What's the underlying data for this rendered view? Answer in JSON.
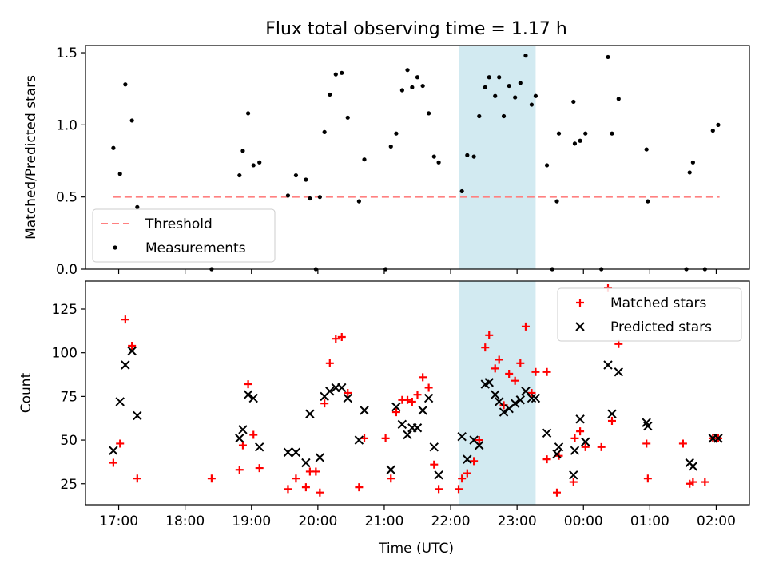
{
  "chart_data": {
    "type": "scatter",
    "title": "Flux total observing time = 1.17 h",
    "xlabel": "Time (UTC)",
    "x_tick_labels": [
      "17:00",
      "18:00",
      "19:00",
      "20:00",
      "21:00",
      "22:00",
      "23:00",
      "00:00",
      "01:00",
      "02:00"
    ],
    "x_ticks_hours": [
      17,
      18,
      19,
      20,
      21,
      22,
      23,
      24,
      25,
      26
    ],
    "x_range_hours": [
      16.5,
      26.5
    ],
    "highlight_band_hours": [
      22.12,
      23.28
    ],
    "highlight_color": "#add8e6",
    "panels": [
      {
        "ylabel": "Matched/Predicted stars",
        "ylim": [
          0,
          1.55
        ],
        "y_ticks": [
          0,
          0.5,
          1.0,
          1.5
        ],
        "y_tick_labels": [
          "0.0",
          "0.5",
          "1.0",
          "1.5"
        ],
        "threshold": {
          "name": "Threshold",
          "value": 0.5,
          "x_range": [
            16.92,
            26.05
          ],
          "color": "#ff8080"
        },
        "series": [
          {
            "name": "Measurements",
            "marker": "dot",
            "color": "#000000",
            "points": [
              [
                16.92,
                0.84
              ],
              [
                17.02,
                0.66
              ],
              [
                17.1,
                1.28
              ],
              [
                17.2,
                1.03
              ],
              [
                17.28,
                0.43
              ],
              [
                18.4,
                0.0
              ],
              [
                18.82,
                0.65
              ],
              [
                18.87,
                0.82
              ],
              [
                18.95,
                1.08
              ],
              [
                19.03,
                0.72
              ],
              [
                19.12,
                0.74
              ],
              [
                19.55,
                0.51
              ],
              [
                19.67,
                0.65
              ],
              [
                19.82,
                0.62
              ],
              [
                19.88,
                0.49
              ],
              [
                19.97,
                0.0
              ],
              [
                20.03,
                0.5
              ],
              [
                20.1,
                0.95
              ],
              [
                20.18,
                1.21
              ],
              [
                20.27,
                1.35
              ],
              [
                20.36,
                1.36
              ],
              [
                20.45,
                1.05
              ],
              [
                20.62,
                0.47
              ],
              [
                20.7,
                0.76
              ],
              [
                21.02,
                0.0
              ],
              [
                21.1,
                0.85
              ],
              [
                21.18,
                0.94
              ],
              [
                21.27,
                1.24
              ],
              [
                21.35,
                1.38
              ],
              [
                21.42,
                1.26
              ],
              [
                21.5,
                1.33
              ],
              [
                21.58,
                1.27
              ],
              [
                21.67,
                1.08
              ],
              [
                21.75,
                0.78
              ],
              [
                21.82,
                0.74
              ],
              [
                22.17,
                0.54
              ],
              [
                22.25,
                0.79
              ],
              [
                22.35,
                0.78
              ],
              [
                22.43,
                1.06
              ],
              [
                22.52,
                1.26
              ],
              [
                22.58,
                1.33
              ],
              [
                22.67,
                1.2
              ],
              [
                22.73,
                1.33
              ],
              [
                22.8,
                1.06
              ],
              [
                22.88,
                1.27
              ],
              [
                22.97,
                1.19
              ],
              [
                23.05,
                1.29
              ],
              [
                23.13,
                1.48
              ],
              [
                23.22,
                1.14
              ],
              [
                23.28,
                1.2
              ],
              [
                23.45,
                0.72
              ],
              [
                23.53,
                0.0
              ],
              [
                23.6,
                0.47
              ],
              [
                23.63,
                0.94
              ],
              [
                23.85,
                1.16
              ],
              [
                23.87,
                0.87
              ],
              [
                23.95,
                0.89
              ],
              [
                24.03,
                0.94
              ],
              [
                24.27,
                0.0
              ],
              [
                24.37,
                1.47
              ],
              [
                24.43,
                0.94
              ],
              [
                24.53,
                1.18
              ],
              [
                24.95,
                0.83
              ],
              [
                24.97,
                0.47
              ],
              [
                25.55,
                0.0
              ],
              [
                25.6,
                0.67
              ],
              [
                25.65,
                0.74
              ],
              [
                25.83,
                0.0
              ],
              [
                25.95,
                0.96
              ],
              [
                26.03,
                1.0
              ]
            ]
          }
        ],
        "legend": {
          "position": "lower-left",
          "entries": [
            "Threshold",
            "Measurements"
          ]
        }
      },
      {
        "ylabel": "Count",
        "ylim": [
          13,
          141
        ],
        "y_ticks": [
          25,
          50,
          75,
          100,
          125
        ],
        "y_tick_labels": [
          "25",
          "50",
          "75",
          "100",
          "125"
        ],
        "series": [
          {
            "name": "Matched stars",
            "marker": "plus",
            "color": "#ff0000",
            "points": [
              [
                16.92,
                37
              ],
              [
                17.02,
                48
              ],
              [
                17.1,
                119
              ],
              [
                17.2,
                104
              ],
              [
                17.28,
                28
              ],
              [
                18.4,
                28
              ],
              [
                18.82,
                33
              ],
              [
                18.87,
                47
              ],
              [
                18.95,
                82
              ],
              [
                19.03,
                53
              ],
              [
                19.12,
                34
              ],
              [
                19.55,
                22
              ],
              [
                19.67,
                28
              ],
              [
                19.82,
                23
              ],
              [
                19.88,
                32
              ],
              [
                19.97,
                32
              ],
              [
                20.03,
                20
              ],
              [
                20.1,
                71
              ],
              [
                20.18,
                94
              ],
              [
                20.27,
                108
              ],
              [
                20.36,
                109
              ],
              [
                20.45,
                77
              ],
              [
                20.62,
                23
              ],
              [
                20.7,
                51
              ],
              [
                21.02,
                51
              ],
              [
                21.1,
                28
              ],
              [
                21.18,
                66
              ],
              [
                21.27,
                73
              ],
              [
                21.35,
                73
              ],
              [
                21.42,
                72
              ],
              [
                21.5,
                76
              ],
              [
                21.58,
                86
              ],
              [
                21.67,
                80
              ],
              [
                21.75,
                36
              ],
              [
                21.82,
                22
              ],
              [
                22.12,
                22
              ],
              [
                22.17,
                28
              ],
              [
                22.25,
                31
              ],
              [
                22.35,
                38
              ],
              [
                22.43,
                50
              ],
              [
                22.52,
                103
              ],
              [
                22.58,
                110
              ],
              [
                22.67,
                91
              ],
              [
                22.73,
                96
              ],
              [
                22.8,
                70
              ],
              [
                22.88,
                88
              ],
              [
                22.97,
                84
              ],
              [
                23.05,
                94
              ],
              [
                23.13,
                115
              ],
              [
                23.22,
                77
              ],
              [
                23.28,
                89
              ],
              [
                23.45,
                89
              ],
              [
                23.45,
                39
              ],
              [
                23.6,
                20
              ],
              [
                23.63,
                41
              ],
              [
                23.85,
                26
              ],
              [
                23.87,
                51
              ],
              [
                23.95,
                55
              ],
              [
                24.03,
                46
              ],
              [
                24.27,
                46
              ],
              [
                24.37,
                137
              ],
              [
                24.43,
                61
              ],
              [
                24.53,
                105
              ],
              [
                24.95,
                48
              ],
              [
                24.97,
                28
              ],
              [
                25.5,
                48
              ],
              [
                25.6,
                25
              ],
              [
                25.65,
                26
              ],
              [
                25.83,
                26
              ],
              [
                25.95,
                51
              ],
              [
                26.03,
                51
              ]
            ]
          },
          {
            "name": "Predicted stars",
            "marker": "x",
            "color": "#000000",
            "points": [
              [
                16.92,
                44
              ],
              [
                17.02,
                72
              ],
              [
                17.1,
                93
              ],
              [
                17.2,
                101
              ],
              [
                17.28,
                64
              ],
              [
                18.82,
                51
              ],
              [
                18.87,
                56
              ],
              [
                18.95,
                76
              ],
              [
                19.03,
                74
              ],
              [
                19.12,
                46
              ],
              [
                19.55,
                43
              ],
              [
                19.67,
                43
              ],
              [
                19.82,
                37
              ],
              [
                19.88,
                65
              ],
              [
                20.03,
                40
              ],
              [
                20.1,
                75
              ],
              [
                20.18,
                78
              ],
              [
                20.27,
                80
              ],
              [
                20.36,
                80
              ],
              [
                20.45,
                74
              ],
              [
                20.62,
                50
              ],
              [
                20.7,
                67
              ],
              [
                21.1,
                33
              ],
              [
                21.18,
                69
              ],
              [
                21.27,
                59
              ],
              [
                21.35,
                53
              ],
              [
                21.42,
                57
              ],
              [
                21.5,
                57
              ],
              [
                21.58,
                67
              ],
              [
                21.67,
                74
              ],
              [
                21.75,
                46
              ],
              [
                21.82,
                30
              ],
              [
                22.17,
                52
              ],
              [
                22.25,
                39
              ],
              [
                22.35,
                50
              ],
              [
                22.43,
                47
              ],
              [
                22.52,
                82
              ],
              [
                22.58,
                83
              ],
              [
                22.67,
                76
              ],
              [
                22.73,
                72
              ],
              [
                22.8,
                66
              ],
              [
                22.88,
                68
              ],
              [
                22.97,
                71
              ],
              [
                23.05,
                73
              ],
              [
                23.13,
                78
              ],
              [
                23.22,
                74
              ],
              [
                23.28,
                74
              ],
              [
                23.45,
                54
              ],
              [
                23.6,
                42
              ],
              [
                23.63,
                46
              ],
              [
                23.85,
                30
              ],
              [
                23.87,
                44
              ],
              [
                23.95,
                62
              ],
              [
                24.03,
                49
              ],
              [
                24.37,
                93
              ],
              [
                24.43,
                65
              ],
              [
                24.53,
                89
              ],
              [
                24.95,
                60
              ],
              [
                24.97,
                58
              ],
              [
                25.6,
                37
              ],
              [
                25.65,
                35
              ],
              [
                25.95,
                51
              ],
              [
                26.03,
                51
              ]
            ]
          }
        ],
        "legend": {
          "position": "top-right",
          "entries": [
            "Matched stars",
            "Predicted stars"
          ]
        }
      }
    ]
  }
}
